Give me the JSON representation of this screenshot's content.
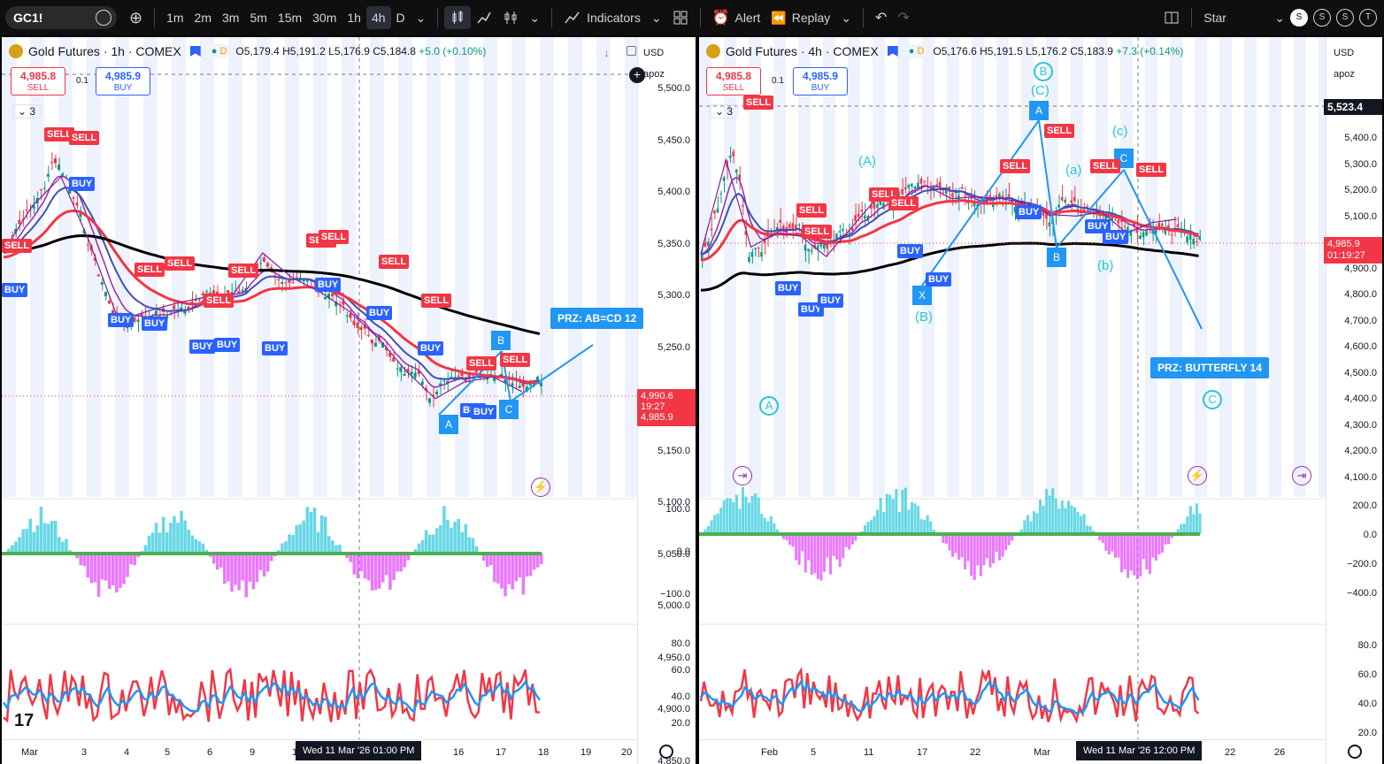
{
  "toolbar": {
    "symbol": "GC1!",
    "intervals": [
      "1m",
      "2m",
      "3m",
      "5m",
      "15m",
      "30m",
      "1h",
      "4h",
      "D"
    ],
    "active_interval": "4h",
    "indicators_label": "Indicators",
    "alert_label": "Alert",
    "replay_label": "Replay",
    "layout_name": "Star",
    "avatars": [
      "S",
      "S",
      "S",
      "T"
    ]
  },
  "left": {
    "title": "Gold Futures · 1h · COMEX",
    "ohlc": {
      "o": "O5,179.4",
      "h": "H5,191.2",
      "l": "L5,176.9",
      "c": "C5,184.8",
      "chg": "+5.0 (+0.10%)"
    },
    "sell": {
      "price": "4,985.8",
      "label": "SELL"
    },
    "buy": {
      "price": "4,985.9",
      "label": "BUY"
    },
    "spread": "0.1",
    "ind_count": "3",
    "currency": "USD",
    "scale_mode": "apoz",
    "price_ticks": [
      "5,500.0",
      "5,450.0",
      "5,400.0",
      "5,350.0",
      "5,300.0",
      "5,250.0",
      "5,200.0",
      "5,150.0",
      "5,100.0",
      "5,050.0",
      "5,000.0",
      "4,950.0",
      "4,900.0",
      "4,850.0"
    ],
    "macd_ticks": [
      "100.0",
      "0.0",
      "−100.0"
    ],
    "rsi_ticks": [
      "80.0",
      "60.0",
      "40.0",
      "20.0"
    ],
    "date_ticks": [
      "Mar",
      "3",
      "4",
      "5",
      "6",
      "9",
      "10",
      "16",
      "17",
      "18",
      "19",
      "20"
    ],
    "crosshair_date": "Wed 11 Mar '26   01:00 PM",
    "last_price": "4,990.6",
    "countdown": "19:27",
    "bid_price": "4,985.9",
    "prz": "PRZ: AB=CD 12",
    "points": [
      "A",
      "B",
      "C"
    ],
    "signals": {
      "sell": "SELL",
      "buy": "BUY"
    }
  },
  "right": {
    "title": "Gold Futures · 4h · COMEX",
    "ohlc": {
      "o": "O5,176.6",
      "h": "H5,191.5",
      "l": "L5,176.2",
      "c": "C5,183.9",
      "chg": "+7.3 (+0.14%)"
    },
    "sell": {
      "price": "4,985.8",
      "label": "SELL"
    },
    "buy": {
      "price": "4,985.9",
      "label": "BUY"
    },
    "spread": "0.1",
    "ind_count": "3",
    "currency": "USD",
    "scale_mode": "apoz",
    "crosshair_price": "5,523.4",
    "price_ticks": [
      "5,400.0",
      "5,300.0",
      "5,200.0",
      "5,100.0",
      "5,000.0",
      "4,900.0",
      "4,800.0",
      "4,700.0",
      "4,600.0",
      "4,500.0",
      "4,400.0",
      "4,300.0",
      "4,200.0",
      "4,100.0"
    ],
    "macd_ticks": [
      "200.0",
      "0.0",
      "−200.0",
      "−400.0"
    ],
    "rsi_ticks": [
      "80.0",
      "60.0",
      "40.0",
      "20.0"
    ],
    "date_ticks": [
      "Feb",
      "5",
      "11",
      "17",
      "22",
      "Mar",
      "22",
      "26"
    ],
    "crosshair_date": "Wed 11 Mar '26   12:00 PM",
    "last_price": "4,985.9",
    "countdown": "01:19:27",
    "prz": "PRZ: BUTTERFLY 14",
    "wave_labels": [
      "(A)",
      "(B)",
      "(C)",
      "(a)",
      "(b)",
      "(c)"
    ],
    "circle_labels": [
      "A",
      "B",
      "C"
    ],
    "points": [
      "A",
      "B",
      "X",
      "C"
    ]
  }
}
